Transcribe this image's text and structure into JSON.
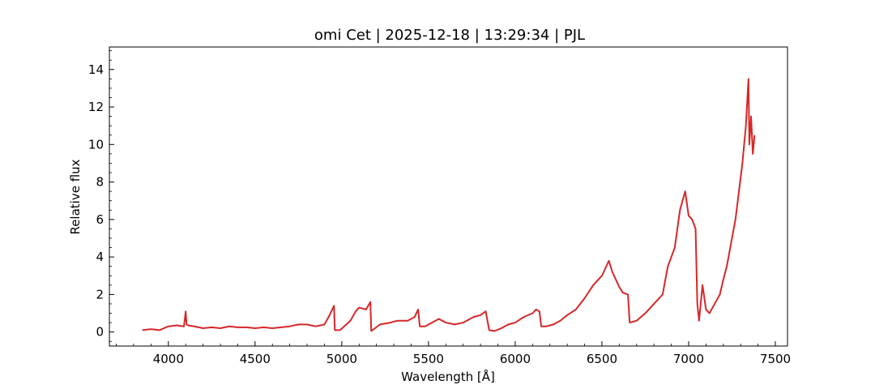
{
  "chart_data": {
    "type": "line",
    "title": "omi Cet | 2025-12-18 | 13:29:34 | PJL",
    "xlabel": "Wavelength [Å]",
    "ylabel": "Relative flux",
    "xlim": [
      3660,
      7570
    ],
    "ylim": [
      -0.75,
      15.2
    ],
    "xticks": [
      4000,
      4500,
      5000,
      5500,
      6000,
      6500,
      7000,
      7500
    ],
    "yticks": [
      0,
      2,
      4,
      6,
      8,
      10,
      12,
      14
    ],
    "tick_direction": "in",
    "minor_ticks": true,
    "grid": false,
    "legend": "none",
    "line_color": "#d62728",
    "series": [
      {
        "x": [
          3850,
          3900,
          3950,
          4000,
          4050,
          4090,
          4100,
          4105,
          4115,
          4150,
          4200,
          4250,
          4300,
          4350,
          4400,
          4450,
          4500,
          4550,
          4600,
          4650,
          4700,
          4750,
          4800,
          4850,
          4900,
          4930,
          4955,
          4960,
          4990,
          5050,
          5080,
          5100,
          5140,
          5165,
          5170,
          5220,
          5280,
          5320,
          5380,
          5420,
          5440,
          5450,
          5480,
          5520,
          5560,
          5600,
          5650,
          5700,
          5760,
          5800,
          5830,
          5850,
          5880,
          5920,
          5960,
          6000,
          6050,
          6100,
          6120,
          6140,
          6150,
          6180,
          6220,
          6260,
          6300,
          6350,
          6400,
          6450,
          6500,
          6540,
          6560,
          6600,
          6620,
          6650,
          6660,
          6700,
          6750,
          6800,
          6850,
          6880,
          6920,
          6950,
          6980,
          7000,
          7020,
          7040,
          7050,
          7060,
          7080,
          7100,
          7120,
          7150,
          7180,
          7200,
          7220,
          7250,
          7270,
          7290,
          7310,
          7330,
          7345,
          7350,
          7360,
          7370,
          7380
        ],
        "y": [
          0.1,
          0.15,
          0.1,
          0.3,
          0.35,
          0.3,
          1.1,
          0.4,
          0.35,
          0.3,
          0.2,
          0.25,
          0.2,
          0.3,
          0.25,
          0.25,
          0.2,
          0.25,
          0.2,
          0.25,
          0.3,
          0.4,
          0.4,
          0.3,
          0.4,
          0.9,
          1.4,
          0.1,
          0.1,
          0.6,
          1.1,
          1.3,
          1.2,
          1.6,
          0.05,
          0.4,
          0.5,
          0.6,
          0.6,
          0.8,
          1.2,
          0.3,
          0.3,
          0.5,
          0.7,
          0.5,
          0.4,
          0.5,
          0.8,
          0.9,
          1.1,
          0.1,
          0.05,
          0.2,
          0.4,
          0.5,
          0.8,
          1.0,
          1.2,
          1.1,
          0.3,
          0.3,
          0.4,
          0.6,
          0.9,
          1.2,
          1.8,
          2.5,
          3.0,
          3.8,
          3.2,
          2.4,
          2.1,
          2.0,
          0.5,
          0.6,
          1.0,
          1.5,
          2.0,
          3.5,
          4.5,
          6.5,
          7.5,
          6.2,
          6.0,
          5.5,
          1.5,
          0.6,
          2.5,
          1.2,
          1.0,
          1.5,
          2.0,
          2.8,
          3.5,
          5.0,
          6.0,
          7.5,
          9.0,
          11.0,
          13.5,
          10.0,
          11.5,
          9.5,
          10.5
        ]
      }
    ]
  }
}
